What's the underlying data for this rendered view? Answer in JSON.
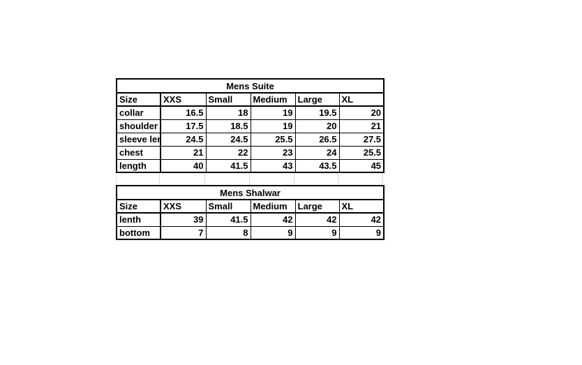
{
  "tables": [
    {
      "title": "Mens Suite",
      "columns": [
        "Size",
        "XXS",
        "Small",
        "Medium",
        "Large",
        "XL"
      ],
      "rows": [
        {
          "label": "collar",
          "values": [
            "16.5",
            "18",
            "19",
            "19.5",
            "20"
          ]
        },
        {
          "label": "shoulder",
          "values": [
            "17.5",
            "18.5",
            "19",
            "20",
            "21"
          ]
        },
        {
          "label": "sleeve length",
          "values": [
            "24.5",
            "24.5",
            "25.5",
            "26.5",
            "27.5"
          ]
        },
        {
          "label": "chest",
          "values": [
            "21",
            "22",
            "23",
            "24",
            "25.5"
          ]
        },
        {
          "label": "length",
          "values": [
            "40",
            "41.5",
            "43",
            "43.5",
            "45"
          ]
        }
      ]
    },
    {
      "title": "Mens Shalwar",
      "columns": [
        "Size",
        "XXS",
        "Small",
        "Medium",
        "Large",
        "XL"
      ],
      "rows": [
        {
          "label": "lenth",
          "values": [
            "39",
            "41.5",
            "42",
            "42",
            "42"
          ]
        },
        {
          "label": "bottom",
          "values": [
            "7",
            "8",
            "9",
            "9",
            "9"
          ]
        }
      ]
    }
  ],
  "colors": {
    "border": "#000000",
    "gridline": "#d9d9d9",
    "text": "#000000",
    "background": "#ffffff"
  }
}
